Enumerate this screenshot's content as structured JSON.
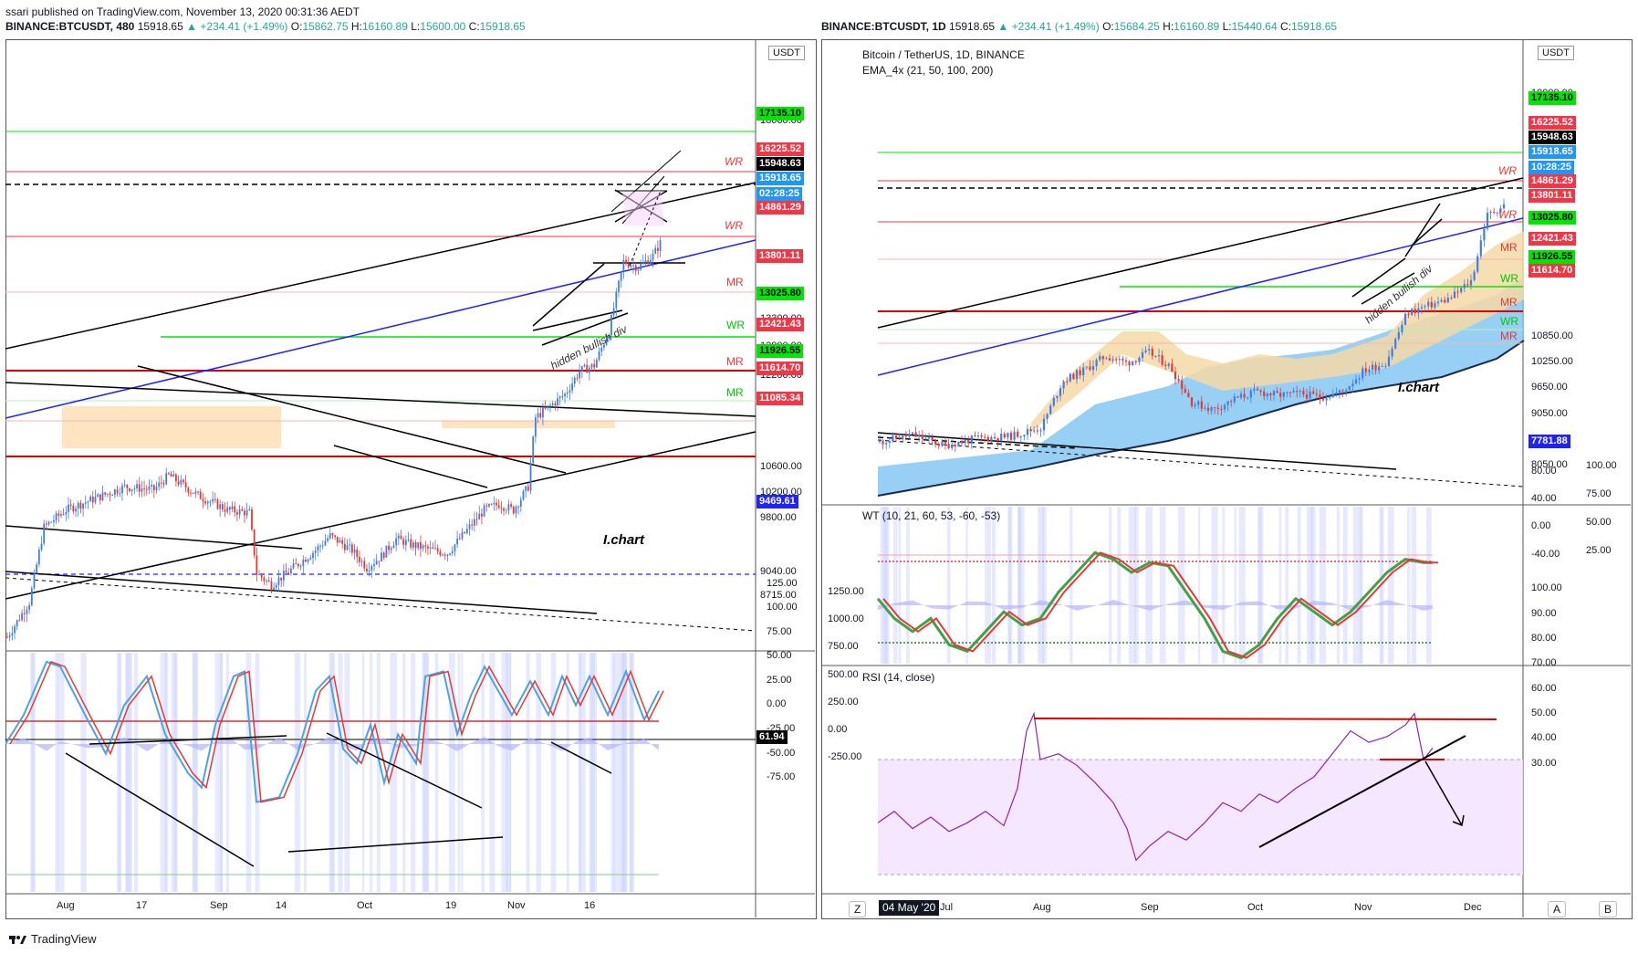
{
  "top": {
    "published": "ssari published on TradingView.com, November 13, 2020 00:31:36 AEDT"
  },
  "left": {
    "header": {
      "symbol": "BINANCE:BTCUSDT, 480",
      "close": "15918.65",
      "change": "+234.41 (+1.49%)",
      "o_label": "O:",
      "o": "15862.75",
      "h_label": "H:",
      "h": "16160.89",
      "l_label": "L:",
      "l": "15600.00",
      "c_label": "C:",
      "c": "15918.65"
    },
    "currency": "USDT",
    "price_ticks": [
      "18000.00",
      "14600.00",
      "13300.00",
      "12800.00",
      "12200.00",
      "10600.00",
      "10200.00",
      "9800.00",
      "9040.00",
      "8715.00"
    ],
    "osc_ticks": [
      "125.00",
      "100.00",
      "75.00",
      "50.00",
      "25.00",
      "0.00",
      "-25.00",
      "-50.00",
      "-75.00"
    ],
    "x_ticks": [
      "Aug",
      "17",
      "Sep",
      "14",
      "Oct",
      "19",
      "Nov",
      "16"
    ],
    "tags": [
      {
        "text": "17135.10",
        "bg": "#00e600",
        "fg": "#000000"
      },
      {
        "text": "16225.52",
        "bg": "#f23645",
        "fg": "#ffffff"
      },
      {
        "text": "15948.63",
        "bg": "#000000",
        "fg": "#ffffff"
      },
      {
        "text": "15918.65",
        "bg": "#2196f3",
        "fg": "#ffffff"
      },
      {
        "text": "02:28:25",
        "bg": "#2196f3",
        "fg": "#ffffff"
      },
      {
        "text": "14861.29",
        "bg": "#f23645",
        "fg": "#ffffff"
      },
      {
        "text": "13801.11",
        "bg": "#f23645",
        "fg": "#ffffff"
      },
      {
        "text": "13025.80",
        "bg": "#00e600",
        "fg": "#000000"
      },
      {
        "text": "12421.43",
        "bg": "#f23645",
        "fg": "#ffffff"
      },
      {
        "text": "11926.55",
        "bg": "#00e600",
        "fg": "#000000"
      },
      {
        "text": "11614.70",
        "bg": "#f23645",
        "fg": "#ffffff"
      },
      {
        "text": "11085.34",
        "bg": "#f23645",
        "fg": "#ffffff"
      },
      {
        "text": "9469.61",
        "bg": "#1e22ff",
        "fg": "#ffffff"
      }
    ],
    "osc_tag": "61.94",
    "annotations": {
      "wr1": "WR",
      "wr2": "WR",
      "mr1": "MR",
      "wr3": "WR",
      "mr2": "MR",
      "mr3": "MR",
      "hidden": "hidden bullish div",
      "ichart": "I.chart"
    }
  },
  "right": {
    "header": {
      "symbol": "BINANCE:BTCUSDT, 1D",
      "close": "15918.65",
      "change": "+234.41 (+1.49%)",
      "o_label": "O:",
      "o": "15684.25",
      "h_label": "H:",
      "h": "16160.89",
      "l_label": "L:",
      "l": "15440.64",
      "c_label": "C:",
      "c": "15918.65"
    },
    "title": "Bitcoin / TetherUS, 1D, BINANCE",
    "ema": "EMA_4x (21, 50, 100, 200)",
    "currency": "USDT",
    "price_ticks": [
      "19000.00",
      "10850.00",
      "10250.00",
      "9650.00",
      "9050.00",
      "8550.00",
      "8050.00"
    ],
    "tags": [
      {
        "text": "17135.10",
        "bg": "#00e600",
        "fg": "#000000"
      },
      {
        "text": "16225.52",
        "bg": "#f23645",
        "fg": "#ffffff"
      },
      {
        "text": "15948.63",
        "bg": "#000000",
        "fg": "#ffffff"
      },
      {
        "text": "15918.65",
        "bg": "#2196f3",
        "fg": "#ffffff"
      },
      {
        "text": "10:28:25",
        "bg": "#2196f3",
        "fg": "#ffffff"
      },
      {
        "text": "14861.29",
        "bg": "#f23645",
        "fg": "#ffffff"
      },
      {
        "text": "13801.11",
        "bg": "#f23645",
        "fg": "#ffffff"
      },
      {
        "text": "13025.80",
        "bg": "#00e600",
        "fg": "#000000"
      },
      {
        "text": "12421.43",
        "bg": "#f23645",
        "fg": "#ffffff"
      },
      {
        "text": "11926.55",
        "bg": "#00e600",
        "fg": "#000000"
      },
      {
        "text": "11614.70",
        "bg": "#f23645",
        "fg": "#ffffff"
      },
      {
        "text": "7781.88",
        "bg": "#1e22ff",
        "fg": "#ffffff"
      }
    ],
    "wt_label": "WT (10, 21, 60, 53, -60, -53)",
    "wt_ticks_left": [
      "80.00",
      "40.00",
      "0.00",
      "-40.00"
    ],
    "wt_ticks_right": [
      "100.00",
      "75.00",
      "50.00",
      "25.00"
    ],
    "rsi_label": "RSI (14, close)",
    "rsi_ticks_left": [
      "1250.00",
      "1000.00",
      "750.00",
      "500.00",
      "250.00",
      "0.00",
      "-250.00"
    ],
    "rsi_ticks_right": [
      "100.00",
      "90.00",
      "80.00",
      "70.00",
      "60.00",
      "50.00",
      "40.00",
      "30.00"
    ],
    "x_ticks": [
      "Jul",
      "Aug",
      "Sep",
      "Oct",
      "Nov",
      "Dec"
    ],
    "date_badge": "04 May '20",
    "z_button": "Z",
    "a_button": "A",
    "b_button": "B",
    "annotations": {
      "wr1": "WR",
      "wr2": "WR",
      "mr1": "MR",
      "wr3": "WR",
      "mr2": "MR",
      "wr4": "WR",
      "mr3": "MR",
      "hidden": "hidden bullish div",
      "ichart": "I.chart"
    }
  },
  "chart_data": [
    {
      "type": "candlestick",
      "title": "BINANCE:BTCUSDT, 480",
      "x_ticks": [
        "Aug",
        "17",
        "Sep",
        "14",
        "Oct",
        "19",
        "Nov",
        "16"
      ],
      "ylim": [
        8500,
        19000
      ],
      "horizontal_levels": [
        17135.1,
        16225.52,
        15948.63,
        15918.65,
        14861.29,
        13801.11,
        13025.8,
        12421.43,
        11926.55,
        11614.7,
        11085.34,
        9469.61
      ],
      "price_path": [
        [
          0,
          9100
        ],
        [
          3,
          9700
        ],
        [
          5,
          11000
        ],
        [
          8,
          11300
        ],
        [
          12,
          11500
        ],
        [
          16,
          11700
        ],
        [
          20,
          11650
        ],
        [
          22,
          11900
        ],
        [
          26,
          11550
        ],
        [
          30,
          11300
        ],
        [
          33,
          11250
        ],
        [
          34,
          10200
        ],
        [
          36,
          10000
        ],
        [
          39,
          10300
        ],
        [
          42,
          10600
        ],
        [
          44,
          10850
        ],
        [
          47,
          10600
        ],
        [
          49,
          10300
        ],
        [
          51,
          10500
        ],
        [
          53,
          10800
        ],
        [
          55,
          10700
        ],
        [
          58,
          10600
        ],
        [
          60,
          10550
        ],
        [
          63,
          11000
        ],
        [
          65,
          11300
        ],
        [
          67,
          11400
        ],
        [
          69,
          11300
        ],
        [
          71,
          11700
        ],
        [
          72,
          12900
        ],
        [
          74,
          13100
        ],
        [
          76,
          13300
        ],
        [
          78,
          13700
        ],
        [
          80,
          13800
        ],
        [
          82,
          14400
        ],
        [
          83,
          15000
        ],
        [
          84,
          15600
        ],
        [
          86,
          15500
        ],
        [
          88,
          15700
        ],
        [
          89,
          15918.65
        ]
      ]
    },
    {
      "type": "line",
      "title": "Oscillator (480)",
      "ylim": [
        -75,
        125
      ],
      "current": 61.94
    },
    {
      "type": "candlestick",
      "title": "Bitcoin / TetherUS, 1D, BINANCE",
      "x_ticks": [
        "Jul",
        "Aug",
        "Sep",
        "Oct",
        "Nov",
        "Dec"
      ],
      "ylim": [
        7781.88,
        19000
      ],
      "horizontal_levels": [
        17135.1,
        16225.52,
        15948.63,
        15918.65,
        14861.29,
        13801.11,
        13025.8,
        12421.43,
        11926.55,
        11614.7
      ]
    },
    {
      "type": "line",
      "title": "WT (10, 21, 60, 53, -60, -53)",
      "ylim": [
        -60,
        100
      ]
    },
    {
      "type": "line",
      "title": "RSI (14, close)",
      "ylim": [
        30,
        100
      ]
    }
  ]
}
